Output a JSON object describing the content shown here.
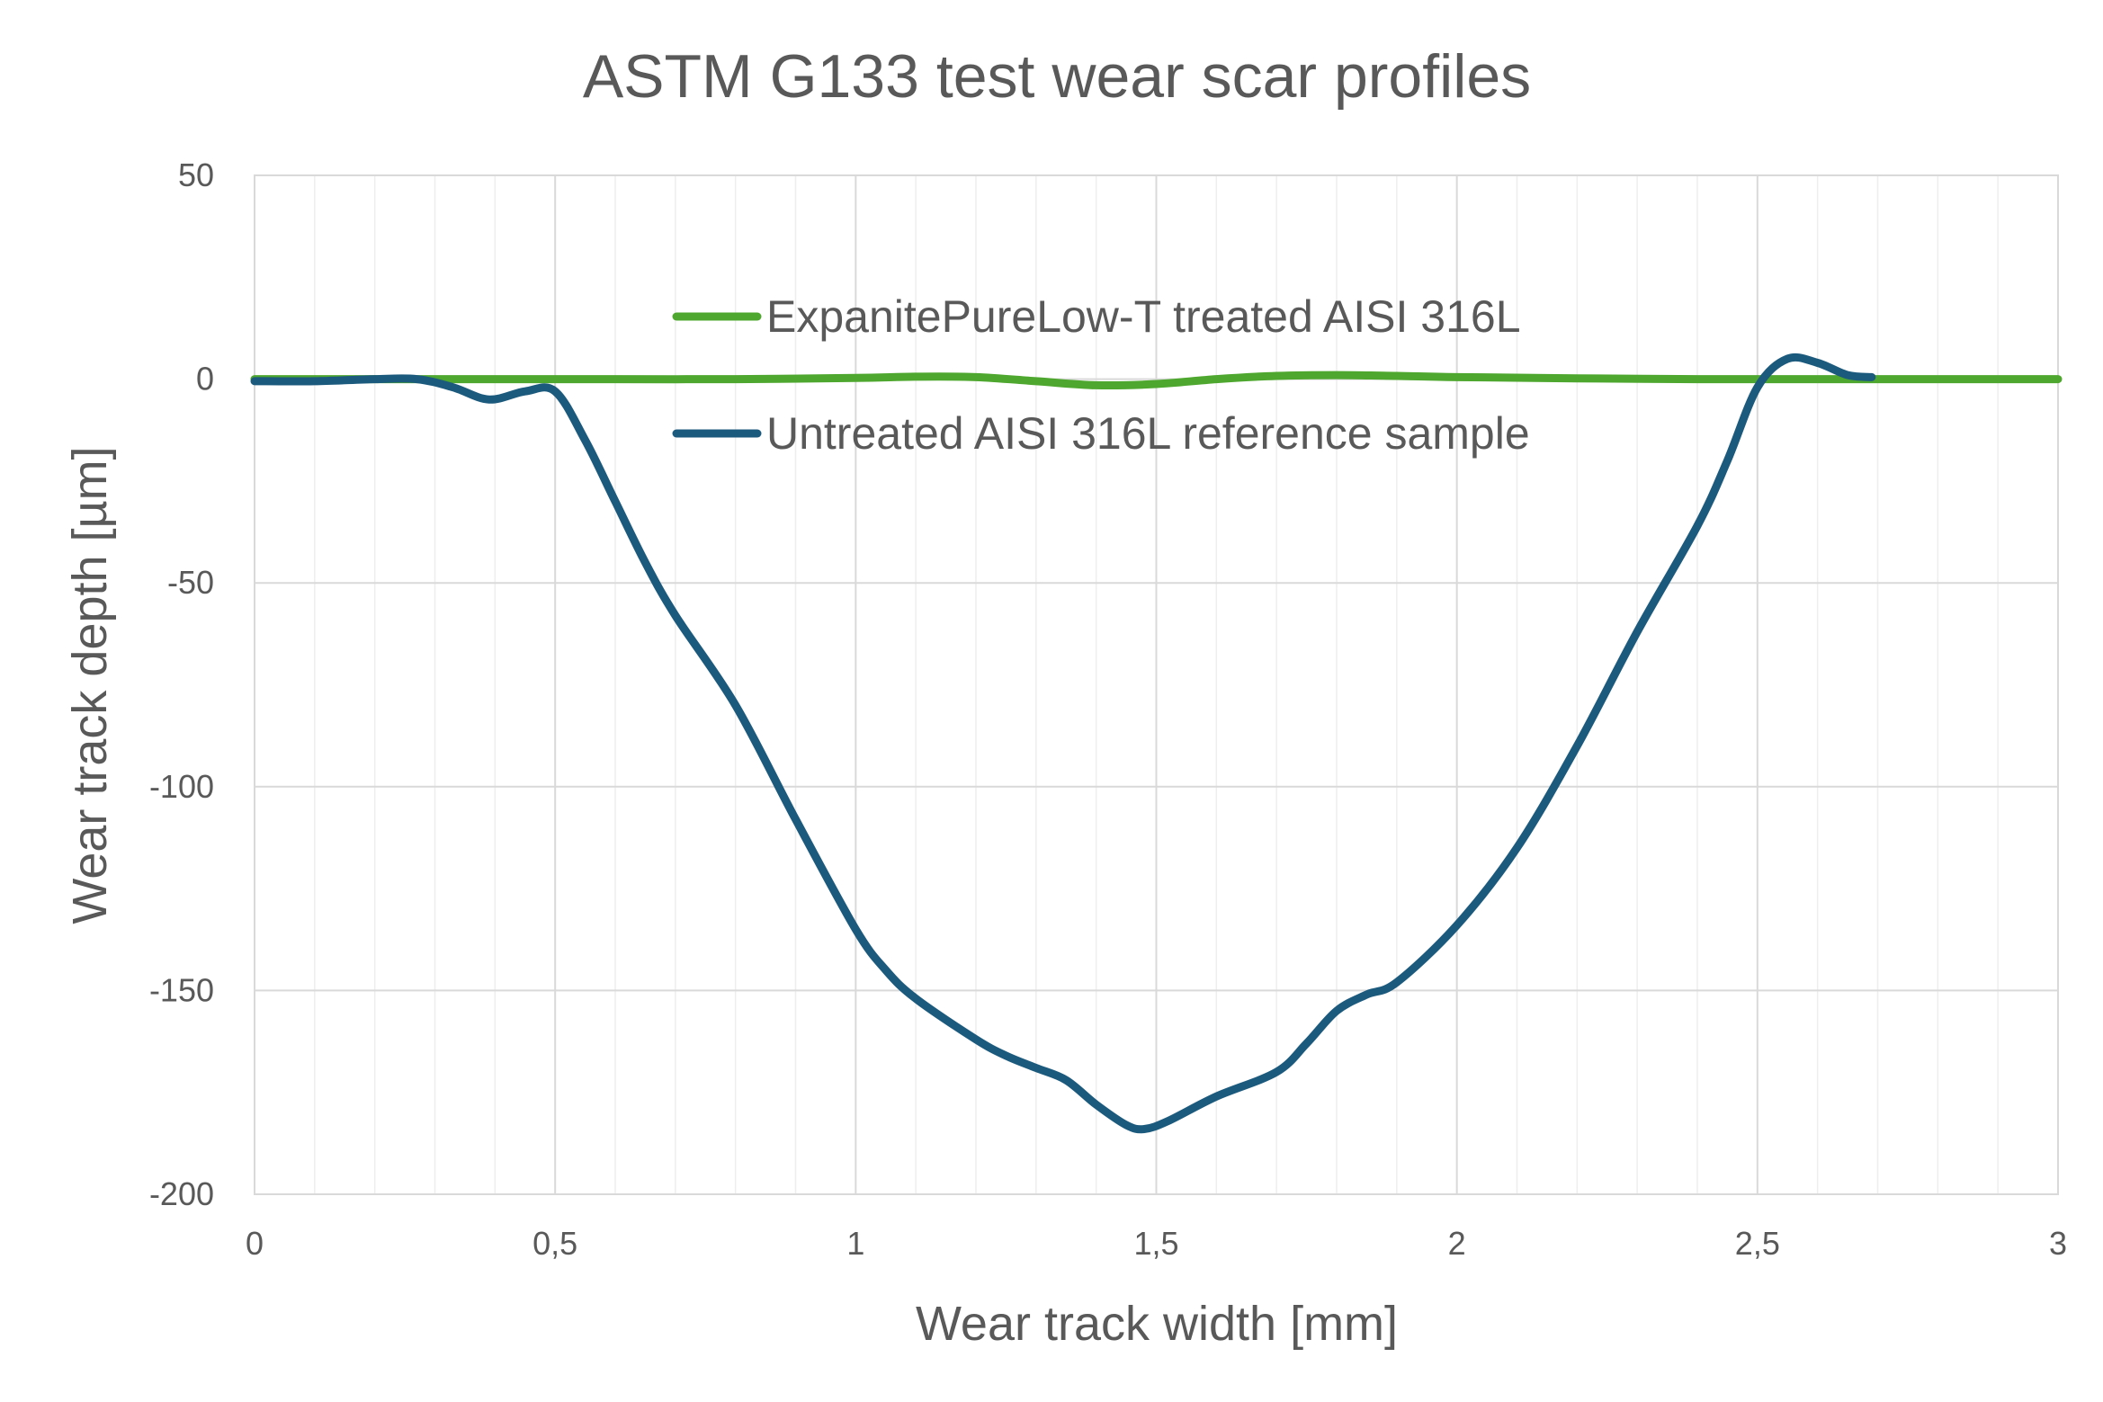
{
  "chart_data": {
    "type": "line",
    "title": "ASTM G133 test wear scar profiles",
    "xlabel": "Wear track width [mm]",
    "ylabel": "Wear track depth [µm]",
    "xlim": [
      0,
      3
    ],
    "ylim": [
      -200,
      50
    ],
    "x_ticks": [
      {
        "value": 0,
        "label": "0"
      },
      {
        "value": 0.5,
        "label": "0,5"
      },
      {
        "value": 1,
        "label": "1"
      },
      {
        "value": 1.5,
        "label": "1,5"
      },
      {
        "value": 2,
        "label": "2"
      },
      {
        "value": 2.5,
        "label": "2,5"
      },
      {
        "value": 3,
        "label": "3"
      }
    ],
    "y_ticks": [
      {
        "value": 50,
        "label": "50"
      },
      {
        "value": 0,
        "label": "0"
      },
      {
        "value": -50,
        "label": "-50"
      },
      {
        "value": -100,
        "label": "-100"
      },
      {
        "value": -150,
        "label": "-150"
      },
      {
        "value": -200,
        "label": "-200"
      }
    ],
    "grid": true,
    "legend_position": "top-center",
    "series": [
      {
        "name": "ExpanitePureLow-T treated AISI 316L",
        "color": "#4ea72e",
        "x": [
          0,
          0.2,
          0.4,
          0.6,
          0.8,
          1.0,
          1.1,
          1.2,
          1.3,
          1.4,
          1.5,
          1.6,
          1.7,
          1.8,
          1.9,
          2.0,
          2.2,
          2.4,
          2.6,
          2.8,
          3.0
        ],
        "y": [
          0,
          0,
          0,
          0,
          0,
          0.3,
          0.6,
          0.5,
          -0.5,
          -1.5,
          -1.2,
          0,
          0.8,
          1.0,
          0.8,
          0.5,
          0.2,
          0,
          0,
          0,
          0
        ]
      },
      {
        "name": "Untreated AISI 316L reference sample",
        "color": "#1c5a7d",
        "x": [
          0,
          0.1,
          0.2,
          0.27,
          0.33,
          0.39,
          0.45,
          0.5,
          0.55,
          0.6,
          0.65,
          0.7,
          0.8,
          0.9,
          1.0,
          1.05,
          1.1,
          1.2,
          1.25,
          1.3,
          1.35,
          1.4,
          1.45,
          1.48,
          1.52,
          1.6,
          1.7,
          1.75,
          1.8,
          1.85,
          1.9,
          2.0,
          2.1,
          2.2,
          2.3,
          2.4,
          2.45,
          2.5,
          2.55,
          2.6,
          2.65,
          2.69
        ],
        "y": [
          -0.5,
          -0.5,
          0,
          0,
          -2,
          -5,
          -3,
          -3,
          -15,
          -30,
          -45,
          -58,
          -80,
          -108,
          -135,
          -145,
          -152,
          -162,
          -166,
          -169,
          -172,
          -178,
          -183,
          -184,
          -182,
          -176,
          -170,
          -163,
          -155,
          -151,
          -148,
          -134,
          -115,
          -90,
          -62,
          -36,
          -20,
          -2,
          5,
          4,
          1,
          0.5
        ]
      }
    ]
  }
}
